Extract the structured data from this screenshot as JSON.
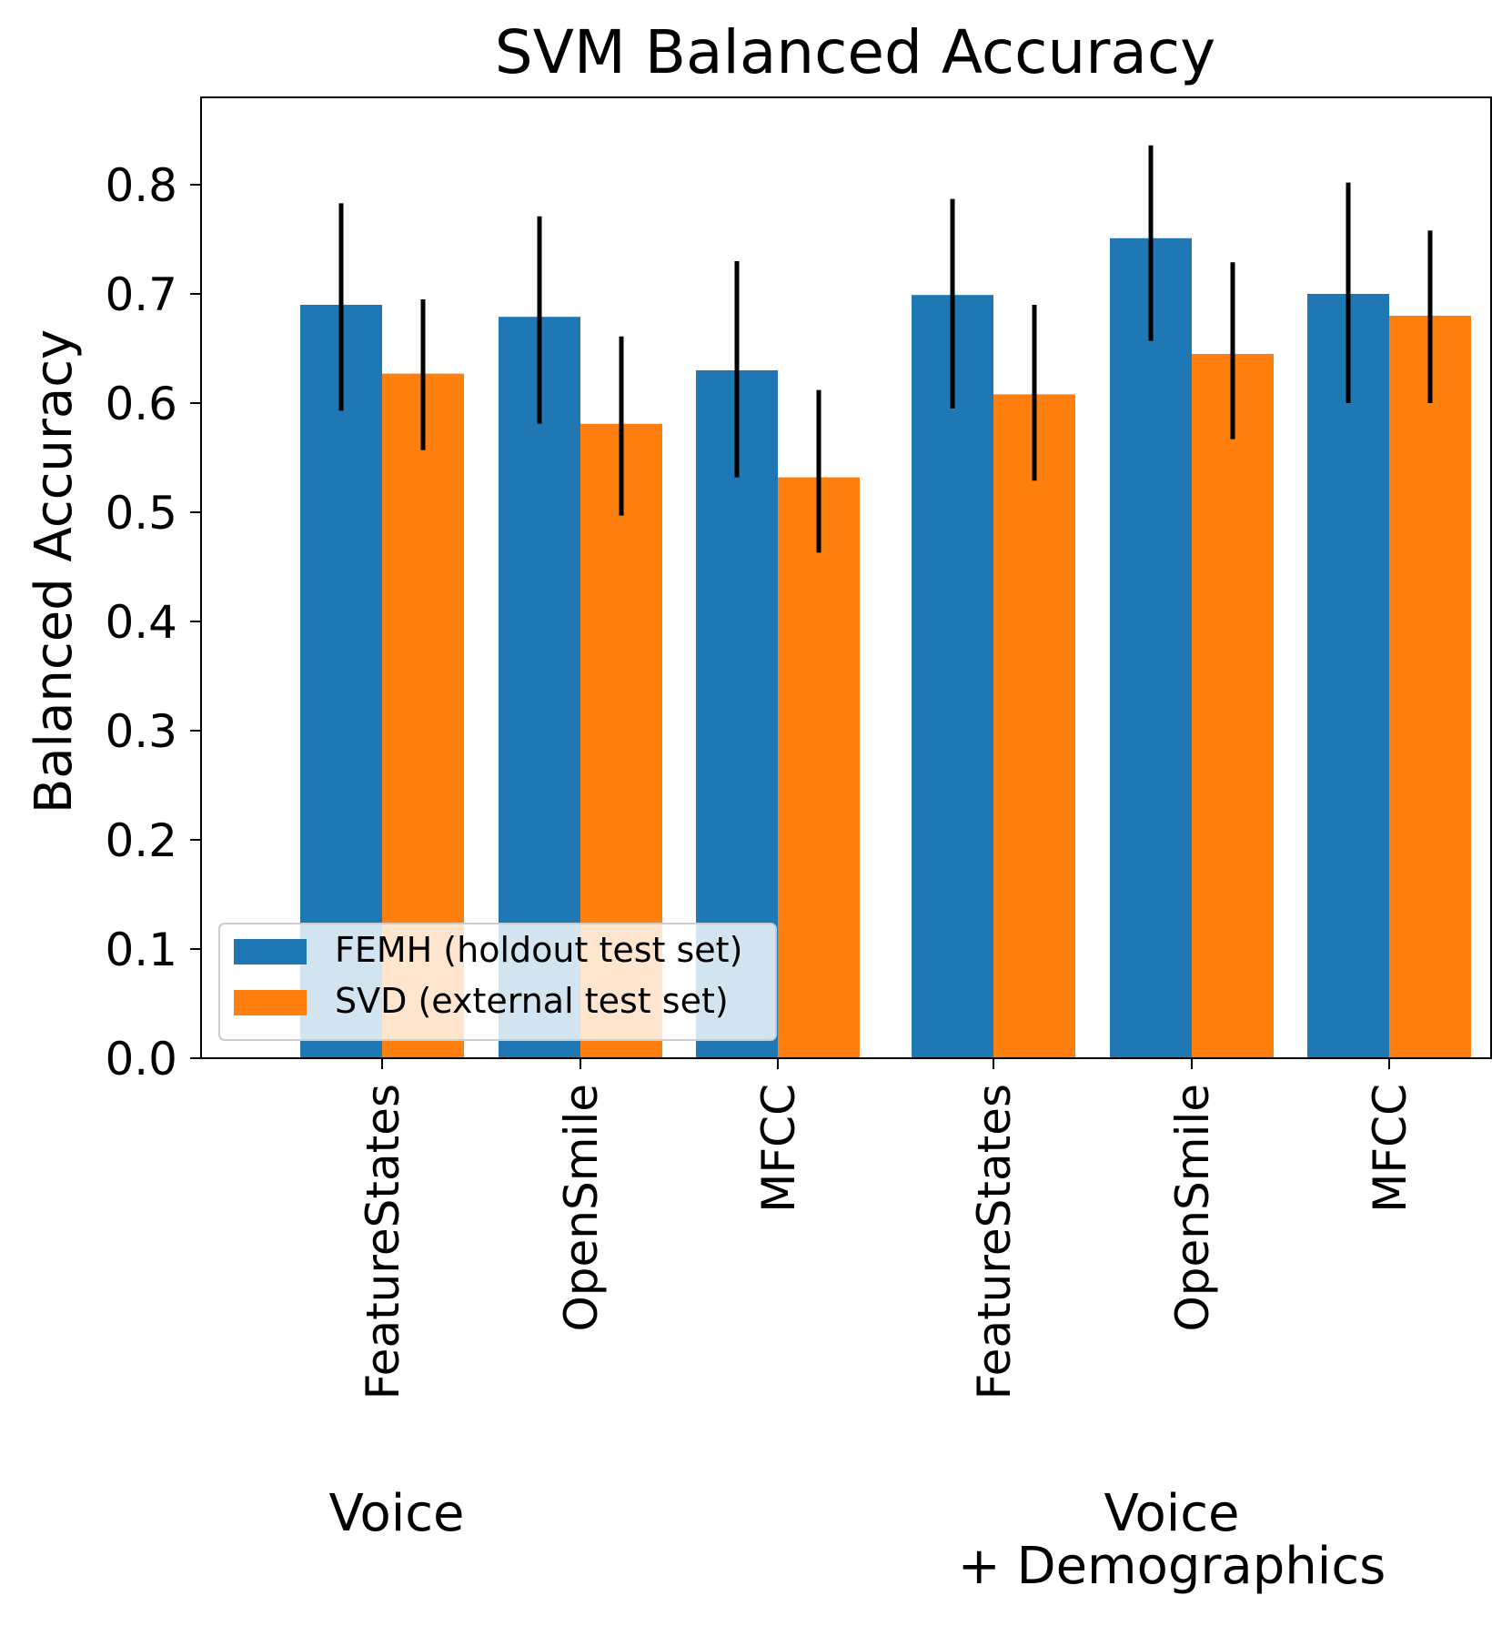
{
  "chart_data": {
    "type": "bar",
    "title": "SVM Balanced Accuracy",
    "xlabel": "",
    "ylabel": "Balanced Accuracy",
    "ylim": [
      0,
      0.88
    ],
    "yticks": [
      0.0,
      0.1,
      0.2,
      0.3,
      0.4,
      0.5,
      0.6,
      0.7,
      0.8
    ],
    "ytick_labels": [
      "0.0",
      "0.1",
      "0.2",
      "0.3",
      "0.4",
      "0.5",
      "0.6",
      "0.7",
      "0.8"
    ],
    "categories": [
      "FeatureStates",
      "OpenSmile",
      "MFCC",
      "FeatureStates",
      "OpenSmile",
      "MFCC"
    ],
    "groups": [
      {
        "label_lines": [
          "Voice"
        ],
        "category_indices": [
          0,
          1,
          2
        ]
      },
      {
        "label_lines": [
          "Voice",
          "+ Demographics"
        ],
        "category_indices": [
          3,
          4,
          5
        ]
      }
    ],
    "series": [
      {
        "name": "FEMH (holdout test set)",
        "color": "#1f77b4",
        "values": [
          0.69,
          0.679,
          0.63,
          0.699,
          0.751,
          0.7
        ],
        "err_low": [
          0.593,
          0.581,
          0.532,
          0.595,
          0.657,
          0.6
        ],
        "err_high": [
          0.783,
          0.771,
          0.73,
          0.787,
          0.836,
          0.802
        ]
      },
      {
        "name": "SVD (external test set)",
        "color": "#ff7f0e",
        "values": [
          0.627,
          0.581,
          0.532,
          0.608,
          0.645,
          0.68
        ],
        "err_low": [
          0.557,
          0.497,
          0.463,
          0.529,
          0.567,
          0.6
        ],
        "err_high": [
          0.695,
          0.661,
          0.612,
          0.69,
          0.729,
          0.758
        ]
      }
    ],
    "legend": {
      "placement": "lower-left"
    },
    "grid": false
  }
}
